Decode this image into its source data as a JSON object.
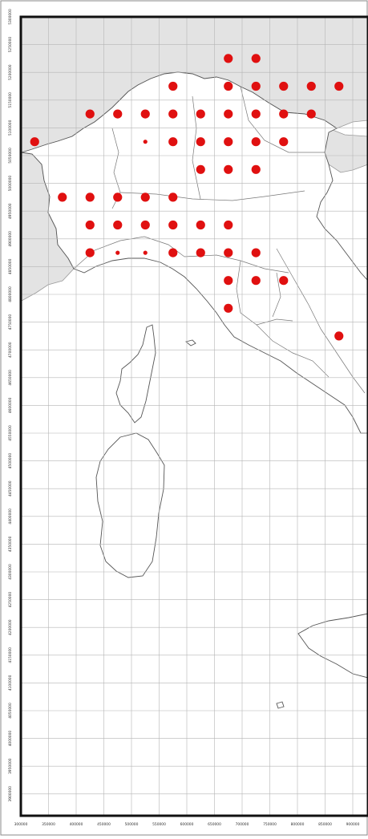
{
  "map": {
    "x_ticks": [
      "300000",
      "350000",
      "400000",
      "450000",
      "500000",
      "550000",
      "600000",
      "650000",
      "700000",
      "750000",
      "800000",
      "850000",
      "900000"
    ],
    "y_ticks": [
      "5300000",
      "5250000",
      "5200000",
      "5150000",
      "5100000",
      "5050000",
      "5000000",
      "4950000",
      "4900000",
      "4850000",
      "4800000",
      "4750000",
      "4700000",
      "4650000",
      "4600000",
      "4550000",
      "4500000",
      "4450000",
      "4400000",
      "4350000",
      "4300000",
      "4250000",
      "4200000",
      "4150000",
      "4100000",
      "4050000",
      "4000000",
      "3950000",
      "3900000"
    ],
    "colors": {
      "dot": "#e01010",
      "sea": "#ffffff",
      "foreign_land": "#e3e3e3",
      "grid": "#b5b5b5",
      "border": "#111111"
    },
    "occurrences_utm": [
      [
        675000,
        5225000,
        "L"
      ],
      [
        725000,
        5225000,
        "L"
      ],
      [
        575000,
        5175000,
        "L"
      ],
      [
        675000,
        5175000,
        "L"
      ],
      [
        725000,
        5175000,
        "L"
      ],
      [
        775000,
        5175000,
        "L"
      ],
      [
        825000,
        5175000,
        "L"
      ],
      [
        875000,
        5175000,
        "L"
      ],
      [
        425000,
        5125000,
        "L"
      ],
      [
        475000,
        5125000,
        "L"
      ],
      [
        525000,
        5125000,
        "L"
      ],
      [
        575000,
        5125000,
        "L"
      ],
      [
        625000,
        5125000,
        "L"
      ],
      [
        675000,
        5125000,
        "L"
      ],
      [
        725000,
        5125000,
        "L"
      ],
      [
        775000,
        5125000,
        "L"
      ],
      [
        825000,
        5125000,
        "L"
      ],
      [
        325000,
        5075000,
        "L"
      ],
      [
        525000,
        5075000,
        "S"
      ],
      [
        575000,
        5075000,
        "L"
      ],
      [
        625000,
        5075000,
        "L"
      ],
      [
        675000,
        5075000,
        "L"
      ],
      [
        725000,
        5075000,
        "L"
      ],
      [
        775000,
        5075000,
        "L"
      ],
      [
        625000,
        5025000,
        "L"
      ],
      [
        675000,
        5025000,
        "L"
      ],
      [
        725000,
        5025000,
        "L"
      ],
      [
        375000,
        4975000,
        "L"
      ],
      [
        425000,
        4975000,
        "L"
      ],
      [
        475000,
        4975000,
        "L"
      ],
      [
        525000,
        4975000,
        "L"
      ],
      [
        575000,
        4975000,
        "L"
      ],
      [
        425000,
        4925000,
        "L"
      ],
      [
        475000,
        4925000,
        "L"
      ],
      [
        525000,
        4925000,
        "L"
      ],
      [
        575000,
        4925000,
        "L"
      ],
      [
        625000,
        4925000,
        "L"
      ],
      [
        675000,
        4925000,
        "L"
      ],
      [
        425000,
        4875000,
        "L"
      ],
      [
        475000,
        4875000,
        "S"
      ],
      [
        525000,
        4875000,
        "S"
      ],
      [
        575000,
        4875000,
        "L"
      ],
      [
        625000,
        4875000,
        "L"
      ],
      [
        675000,
        4875000,
        "L"
      ],
      [
        725000,
        4875000,
        "L"
      ],
      [
        675000,
        4825000,
        "L"
      ],
      [
        725000,
        4825000,
        "L"
      ],
      [
        775000,
        4825000,
        "L"
      ],
      [
        675000,
        4775000,
        "L"
      ],
      [
        875000,
        4725000,
        "L"
      ]
    ]
  }
}
